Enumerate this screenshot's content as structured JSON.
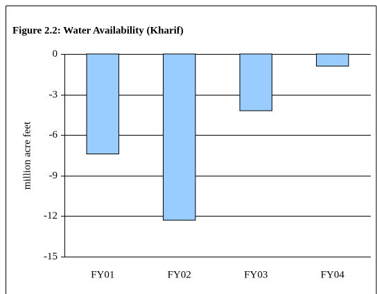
{
  "chart_data": {
    "type": "bar",
    "title": "Figure 2.2: Water Availability (Kharif)",
    "y_label": "million acre feet",
    "categories": [
      "FY01",
      "FY02",
      "FY03",
      "FY04"
    ],
    "values": [
      -7.4,
      -12.3,
      -4.2,
      -0.9
    ],
    "color": "#99ccff",
    "ylim": [
      -15,
      0
    ],
    "yticks": [
      0,
      -3,
      -6,
      -9,
      -12,
      -15
    ],
    "grid": true
  }
}
